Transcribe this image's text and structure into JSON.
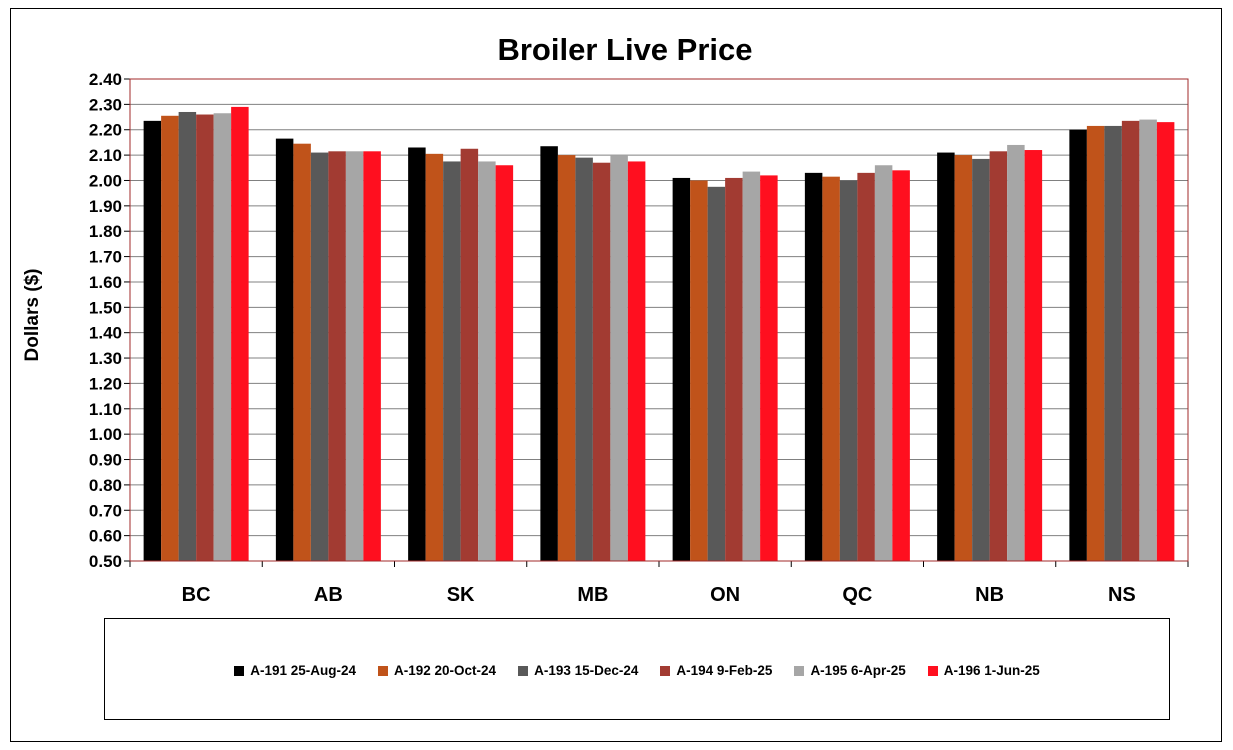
{
  "chart_data": {
    "type": "bar",
    "title": "Broiler Live Price",
    "ylabel": "Dollars ($)",
    "xlabel": "",
    "ylim": [
      0.5,
      2.4
    ],
    "ytick_step": 0.1,
    "yticks": [
      "2.40",
      "2.30",
      "2.20",
      "2.10",
      "2.00",
      "1.90",
      "1.80",
      "1.70",
      "1.60",
      "1.50",
      "1.40",
      "1.30",
      "1.20",
      "1.10",
      "1.00",
      "0.90",
      "0.80",
      "0.70",
      "0.60",
      "0.50"
    ],
    "grid": true,
    "legend_position": "bottom",
    "categories": [
      "BC",
      "AB",
      "SK",
      "MB",
      "ON",
      "QC",
      "NB",
      "NS"
    ],
    "series": [
      {
        "name": "A-191 25-Aug-24",
        "color": "#000000",
        "values": [
          2.235,
          2.165,
          2.13,
          2.135,
          2.01,
          2.03,
          2.11,
          2.2
        ]
      },
      {
        "name": "A-192 20-Oct-24",
        "color": "#C0531A",
        "values": [
          2.255,
          2.145,
          2.105,
          2.1,
          2.0,
          2.015,
          2.1,
          2.215
        ]
      },
      {
        "name": "A-193 15-Dec-24",
        "color": "#595959",
        "values": [
          2.27,
          2.11,
          2.075,
          2.09,
          1.975,
          2.0,
          2.085,
          2.215
        ]
      },
      {
        "name": "A-194 9-Feb-25",
        "color": "#A23B32",
        "values": [
          2.26,
          2.115,
          2.125,
          2.07,
          2.01,
          2.03,
          2.115,
          2.235
        ]
      },
      {
        "name": "A-195 6-Apr-25",
        "color": "#A6A6A6",
        "values": [
          2.265,
          2.115,
          2.075,
          2.1,
          2.035,
          2.06,
          2.14,
          2.24
        ]
      },
      {
        "name": "A-196 1-Jun-25",
        "color": "#FF0F1F",
        "values": [
          2.29,
          2.115,
          2.06,
          2.075,
          2.02,
          2.04,
          2.12,
          2.23
        ]
      }
    ],
    "plot_border_color": "#A0282A",
    "gridline_color": "#808080"
  }
}
